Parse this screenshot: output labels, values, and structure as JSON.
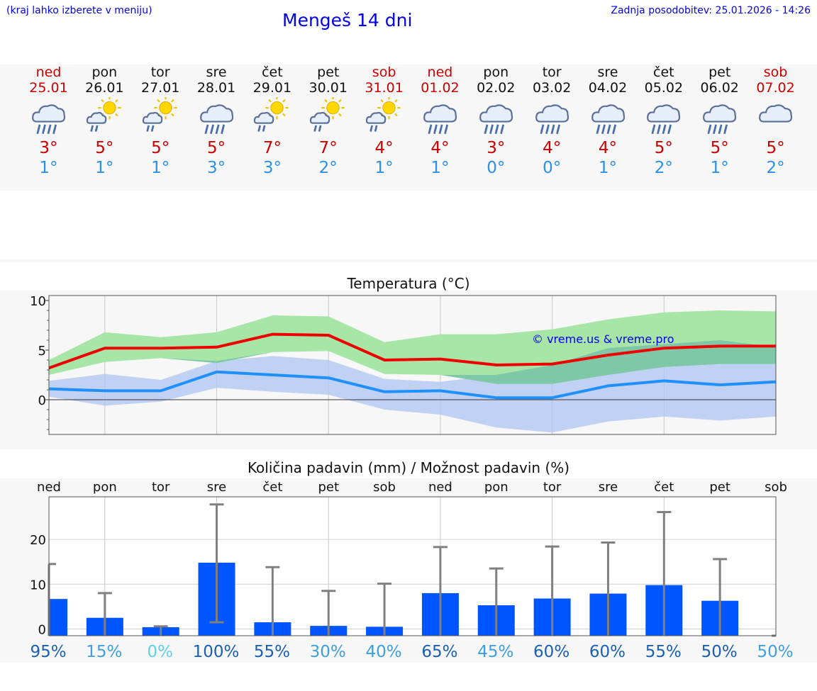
{
  "header": {
    "menu_hint": "(kraj lahko izberete v meniju)",
    "title": "Mengeš 14 dni",
    "updated": "Zadnja posodobitev: 25.01.2026 - 14:26"
  },
  "days": [
    {
      "name": "ned",
      "date": "25.01",
      "weekend": true,
      "icon": "cloud-rain-icon",
      "tmax": "3°",
      "tmin": "1°"
    },
    {
      "name": "pon",
      "date": "26.01",
      "weekend": false,
      "icon": "sun-cloud-rain-icon",
      "tmax": "5°",
      "tmin": "1°"
    },
    {
      "name": "tor",
      "date": "27.01",
      "weekend": false,
      "icon": "sun-cloud-rain-icon",
      "tmax": "5°",
      "tmin": "1°"
    },
    {
      "name": "sre",
      "date": "28.01",
      "weekend": false,
      "icon": "cloud-rain-icon",
      "tmax": "5°",
      "tmin": "3°"
    },
    {
      "name": "čet",
      "date": "29.01",
      "weekend": false,
      "icon": "sun-cloud-rain-icon",
      "tmax": "7°",
      "tmin": "3°"
    },
    {
      "name": "pet",
      "date": "30.01",
      "weekend": false,
      "icon": "sun-cloud-rain-icon",
      "tmax": "7°",
      "tmin": "2°"
    },
    {
      "name": "sob",
      "date": "31.01",
      "weekend": true,
      "icon": "sun-cloud-rain-icon",
      "tmax": "4°",
      "tmin": "1°"
    },
    {
      "name": "ned",
      "date": "01.02",
      "weekend": true,
      "icon": "cloud-rain-icon",
      "tmax": "4°",
      "tmin": "1°"
    },
    {
      "name": "pon",
      "date": "02.02",
      "weekend": false,
      "icon": "cloud-rain-icon",
      "tmax": "3°",
      "tmin": "0°"
    },
    {
      "name": "tor",
      "date": "03.02",
      "weekend": false,
      "icon": "cloud-rain-icon",
      "tmax": "4°",
      "tmin": "0°"
    },
    {
      "name": "sre",
      "date": "04.02",
      "weekend": false,
      "icon": "cloud-rain-icon",
      "tmax": "4°",
      "tmin": "1°"
    },
    {
      "name": "čet",
      "date": "05.02",
      "weekend": false,
      "icon": "cloud-rain-icon",
      "tmax": "5°",
      "tmin": "2°"
    },
    {
      "name": "pet",
      "date": "06.02",
      "weekend": false,
      "icon": "cloud-rain-icon",
      "tmax": "5°",
      "tmin": "1°"
    },
    {
      "name": "sob",
      "date": "07.02",
      "weekend": true,
      "icon": "cloud-icon",
      "tmax": "5°",
      "tmin": "2°"
    }
  ],
  "colors": {
    "max_line": "#ee0000",
    "max_band": "#a8e6a8",
    "min_line": "#1e90ff",
    "min_band": "#aec4f2",
    "overlap_band": "#7ec8a8",
    "bar": "#0055ff",
    "errbar": "#808080",
    "weekend": "#cc0000",
    "title_blue": "#0000ee"
  },
  "chart_data": [
    {
      "type": "line",
      "title": "Temperatura (°C)",
      "watermark": "© vreme.us & vreme.pro",
      "ylim": [
        -3.5,
        10.5
      ],
      "yticks": [
        0,
        5,
        10
      ],
      "x": [
        0,
        1,
        2,
        3,
        4,
        5,
        6,
        7,
        8,
        9,
        10,
        11,
        12,
        13
      ],
      "series": [
        {
          "name": "max",
          "values": [
            3.2,
            5.2,
            5.2,
            5.3,
            6.6,
            6.5,
            4.0,
            4.1,
            3.5,
            3.6,
            4.5,
            5.2,
            5.4,
            5.4
          ],
          "band_low": [
            2.5,
            3.8,
            4.2,
            3.7,
            4.8,
            4.9,
            2.6,
            2.5,
            1.6,
            1.6,
            2.5,
            3.3,
            3.6,
            3.6
          ],
          "band_high": [
            4.0,
            6.8,
            6.3,
            6.8,
            8.5,
            8.4,
            5.8,
            6.6,
            6.6,
            7.1,
            8.1,
            8.8,
            9.0,
            8.9
          ]
        },
        {
          "name": "min",
          "values": [
            1.1,
            0.9,
            0.9,
            2.8,
            2.5,
            2.2,
            0.8,
            0.9,
            0.2,
            0.2,
            1.4,
            1.9,
            1.5,
            1.8
          ],
          "band_low": [
            0.3,
            -0.6,
            -0.2,
            1.2,
            0.8,
            0.5,
            -1.0,
            -1.5,
            -2.8,
            -3.3,
            -2.2,
            -1.7,
            -2.1,
            -1.7
          ],
          "band_high": [
            1.9,
            2.6,
            2.0,
            3.9,
            4.4,
            4.0,
            2.1,
            1.8,
            2.5,
            3.5,
            5.2,
            5.6,
            6.0,
            5.3
          ]
        }
      ]
    },
    {
      "type": "bar",
      "title": "Količina padavin (mm) / Možnost padavin (%)",
      "categories": [
        "ned",
        "pon",
        "tor",
        "sre",
        "čet",
        "pet",
        "sob",
        "ned",
        "pon",
        "tor",
        "sre",
        "čet",
        "pet",
        "sob"
      ],
      "ylim": [
        -1.5,
        29.5
      ],
      "yticks": [
        0,
        10,
        20
      ],
      "values": [
        6.7,
        2.5,
        0.4,
        14.8,
        1.5,
        0.7,
        0.5,
        8.0,
        5.3,
        6.8,
        7.9,
        9.8,
        6.3,
        0
      ],
      "err_low": [
        0,
        0,
        0,
        1.5,
        0,
        0,
        0,
        0,
        0,
        0,
        0,
        0,
        0,
        0
      ],
      "err_high": [
        14.5,
        8.0,
        0.6,
        27.8,
        13.8,
        8.5,
        10.1,
        18.3,
        13.5,
        18.4,
        19.3,
        26.1,
        15.6,
        0
      ],
      "probability": [
        "95%",
        "15%",
        "0%",
        "100%",
        "55%",
        "30%",
        "40%",
        "65%",
        "45%",
        "60%",
        "60%",
        "55%",
        "50%",
        "50%"
      ],
      "probability_colors": [
        "#1a5fb4",
        "#3f9fdc",
        "#5fd0e8",
        "#1a5fb4",
        "#1a5fb4",
        "#3f9fdc",
        "#3f9fdc",
        "#1a5fb4",
        "#3f9fdc",
        "#1a5fb4",
        "#1a5fb4",
        "#1a5fb4",
        "#1a5fb4",
        "#3f9fdc"
      ]
    }
  ]
}
